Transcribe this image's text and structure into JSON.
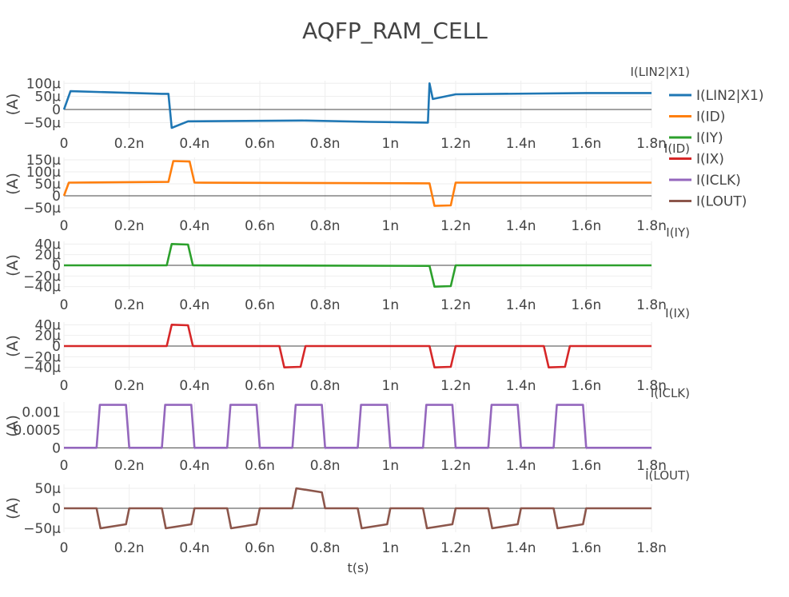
{
  "title": "AQFP_RAM_CELL",
  "xlabel": "t(s)",
  "colors": [
    "#1f77b4",
    "#ff7f0e",
    "#2ca02c",
    "#d62728",
    "#9467bd",
    "#8c564b"
  ],
  "chart_data": {
    "type": "line",
    "title": "AQFP_RAM_CELL",
    "xlabel": "t(s)",
    "x_ticks": [
      "0",
      "0.2n",
      "0.4n",
      "0.6n",
      "0.8n",
      "1n",
      "1.2n",
      "1.4n",
      "1.6n",
      "1.8n"
    ],
    "xlim": [
      0,
      1.8e-09
    ],
    "legend_position": "top-right",
    "grid": true,
    "subplots": [
      {
        "name": "I(LIN2|X1)",
        "subtitle": "I(LIN2|X1)",
        "ylabel": "(A)",
        "ylim": [
          -7e-05,
          0.00011
        ],
        "y_ticks": [
          {
            "v": 0.0001,
            "t": "100μ"
          },
          {
            "v": 5e-05,
            "t": "50μ"
          },
          {
            "v": 0,
            "t": "0"
          },
          {
            "v": -5e-05,
            "t": "−50μ"
          }
        ],
        "x": [
          0,
          2e-11,
          3e-10,
          3.2e-10,
          3.3e-10,
          3.8e-10,
          7.3e-10,
          9.4e-10,
          1.115e-09,
          1.12e-09,
          1.13e-09,
          1.2e-09,
          1.6e-09,
          1.8e-09
        ],
        "y": [
          0,
          7e-05,
          6e-05,
          6e-05,
          -7e-05,
          -4.5e-05,
          -4.2e-05,
          -4.7e-05,
          -5e-05,
          0.0001,
          4e-05,
          5.8e-05,
          6.3e-05,
          6.3e-05
        ]
      },
      {
        "name": "I(ID)",
        "subtitle": "I(ID)",
        "ylabel": "(A)",
        "ylim": [
          -6e-05,
          0.00016
        ],
        "y_ticks": [
          {
            "v": 0.00015,
            "t": "150μ"
          },
          {
            "v": 0.0001,
            "t": "100μ"
          },
          {
            "v": 5e-05,
            "t": "50μ"
          },
          {
            "v": 0,
            "t": "0"
          },
          {
            "v": -5e-05,
            "t": "−50μ"
          }
        ],
        "x": [
          0,
          1.5e-11,
          3.2e-10,
          3.35e-10,
          3.85e-10,
          4e-10,
          1.12e-09,
          1.135e-09,
          1.185e-09,
          1.2e-09,
          1.8e-09
        ],
        "y": [
          0,
          5.5e-05,
          5.8e-05,
          0.000145,
          0.000143,
          5.5e-05,
          5.2e-05,
          -4.2e-05,
          -4e-05,
          5.5e-05,
          5.5e-05
        ]
      },
      {
        "name": "I(IY)",
        "subtitle": "I(IY)",
        "ylabel": "(A)",
        "ylim": [
          -4.5e-05,
          4.5e-05
        ],
        "y_ticks": [
          {
            "v": 4e-05,
            "t": "40μ"
          },
          {
            "v": 2e-05,
            "t": "20μ"
          },
          {
            "v": 0,
            "t": "0"
          },
          {
            "v": -2e-05,
            "t": "−20μ"
          },
          {
            "v": -4e-05,
            "t": "−40μ"
          }
        ],
        "x": [
          0,
          3.15e-10,
          3.3e-10,
          3.8e-10,
          3.95e-10,
          1.12e-09,
          1.135e-09,
          1.185e-09,
          1.2e-09,
          1.8e-09
        ],
        "y": [
          0,
          0,
          4e-05,
          3.9e-05,
          0,
          -1e-06,
          -4e-05,
          -3.9e-05,
          0,
          0
        ]
      },
      {
        "name": "I(IX)",
        "subtitle": "I(IX)",
        "ylabel": "(A)",
        "ylim": [
          -4.5e-05,
          4.5e-05
        ],
        "y_ticks": [
          {
            "v": 4e-05,
            "t": "40μ"
          },
          {
            "v": 2e-05,
            "t": "20μ"
          },
          {
            "v": 0,
            "t": "0"
          },
          {
            "v": -2e-05,
            "t": "−20μ"
          },
          {
            "v": -4e-05,
            "t": "−40μ"
          }
        ],
        "x": [
          0,
          3.15e-10,
          3.3e-10,
          3.8e-10,
          3.95e-10,
          6.6e-10,
          6.75e-10,
          7.25e-10,
          7.4e-10,
          1.12e-09,
          1.135e-09,
          1.185e-09,
          1.2e-09,
          1.47e-09,
          1.485e-09,
          1.535e-09,
          1.55e-09,
          1.8e-09
        ],
        "y": [
          0,
          0,
          4e-05,
          3.9e-05,
          0,
          0,
          -4e-05,
          -3.9e-05,
          0,
          0,
          -4e-05,
          -3.9e-05,
          0,
          0,
          -4e-05,
          -3.9e-05,
          0,
          0
        ]
      },
      {
        "name": "I(ICLK)",
        "subtitle": "I(ICLK)",
        "ylabel": "(A)",
        "ylim": [
          -6e-05,
          0.00128
        ],
        "y_ticks": [
          {
            "v": 0.001,
            "t": "0.001"
          },
          {
            "v": 0.0005,
            "t": "0.0005"
          },
          {
            "v": 0,
            "t": "0"
          }
        ],
        "x": [
          0,
          1e-10,
          1.1e-10,
          1.9e-10,
          2e-10,
          3e-10,
          3.1e-10,
          3.9e-10,
          4e-10,
          5e-10,
          5.1e-10,
          5.9e-10,
          6e-10,
          7e-10,
          7.1e-10,
          7.9e-10,
          8e-10,
          9e-10,
          9.1e-10,
          9.9e-10,
          1e-09,
          1.1e-09,
          1.11e-09,
          1.19e-09,
          1.2e-09,
          1.3e-09,
          1.31e-09,
          1.39e-09,
          1.4e-09,
          1.5e-09,
          1.51e-09,
          1.59e-09,
          1.6e-09,
          1.8e-09
        ],
        "y": [
          0,
          0,
          0.0012,
          0.0012,
          0,
          0,
          0.0012,
          0.0012,
          0,
          0,
          0.0012,
          0.0012,
          0,
          0,
          0.0012,
          0.0012,
          0,
          0,
          0.0012,
          0.0012,
          0,
          0,
          0.0012,
          0.0012,
          0,
          0,
          0.0012,
          0.0012,
          0,
          0,
          0.0012,
          0.0012,
          0,
          0
        ]
      },
      {
        "name": "I(LOUT)",
        "subtitle": "I(LOUT)",
        "ylabel": "(A)",
        "ylim": [
          -6e-05,
          6e-05
        ],
        "y_ticks": [
          {
            "v": 5e-05,
            "t": "50μ"
          },
          {
            "v": 0,
            "t": "0"
          },
          {
            "v": -5e-05,
            "t": "−50μ"
          }
        ],
        "x": [
          0,
          1e-10,
          1.12e-10,
          1.9e-10,
          2e-10,
          3e-10,
          3.12e-10,
          3.9e-10,
          4e-10,
          5e-10,
          5.12e-10,
          5.9e-10,
          6e-10,
          7e-10,
          7.12e-10,
          7.9e-10,
          8e-10,
          9e-10,
          9.12e-10,
          9.9e-10,
          1e-09,
          1.1e-09,
          1.112e-09,
          1.19e-09,
          1.2e-09,
          1.3e-09,
          1.312e-09,
          1.39e-09,
          1.4e-09,
          1.5e-09,
          1.512e-09,
          1.59e-09,
          1.6e-09,
          1.8e-09
        ],
        "y": [
          0,
          0,
          -5e-05,
          -4e-05,
          0,
          0,
          -5e-05,
          -4e-05,
          0,
          0,
          -5e-05,
          -4e-05,
          0,
          0,
          5e-05,
          4e-05,
          0,
          0,
          -5e-05,
          -4e-05,
          0,
          0,
          -5e-05,
          -4e-05,
          0,
          0,
          -5e-05,
          -4e-05,
          0,
          0,
          -5e-05,
          -4e-05,
          0,
          0
        ]
      }
    ]
  }
}
